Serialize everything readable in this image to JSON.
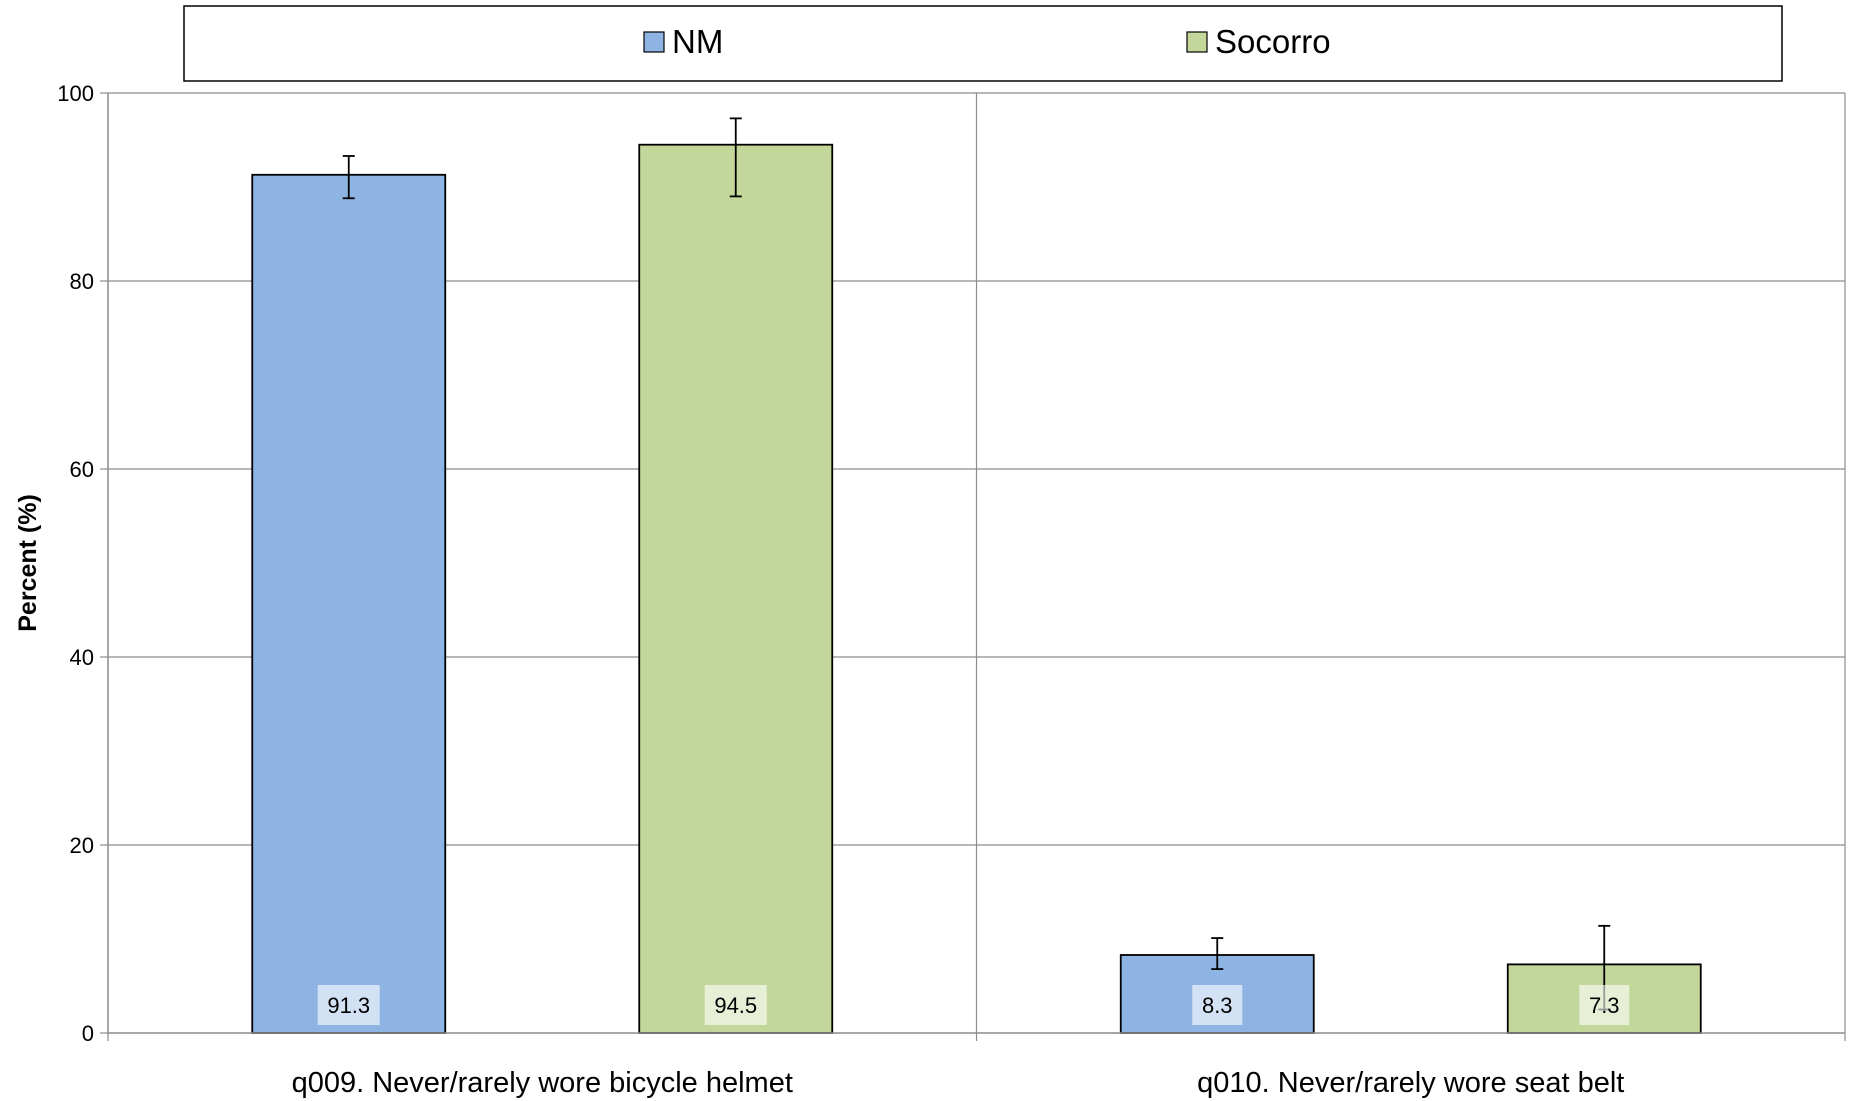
{
  "chart_data": {
    "type": "bar",
    "title": "",
    "xlabel": "",
    "ylabel": "Percent (%)",
    "ylim": [
      0,
      100
    ],
    "yticks": [
      0,
      20,
      40,
      60,
      80,
      100
    ],
    "grid": true,
    "legend_position": "top",
    "categories": [
      "q009. Never/rarely wore bicycle helmet",
      "q010. Never/rarely wore seat belt"
    ],
    "series": [
      {
        "name": "NM",
        "color": "#8EB4E3",
        "values": [
          91.3,
          8.3
        ],
        "labels": [
          "91.3",
          "8.3"
        ],
        "ci_low": [
          88.8,
          6.8
        ],
        "ci_high": [
          93.3,
          10.1
        ]
      },
      {
        "name": "Socorro",
        "color": "#C4D79B",
        "values": [
          94.5,
          7.3
        ],
        "labels": [
          "94.5",
          "7.3"
        ],
        "ci_low": [
          89.0,
          2.5
        ],
        "ci_high": [
          97.3,
          11.4
        ]
      }
    ]
  }
}
